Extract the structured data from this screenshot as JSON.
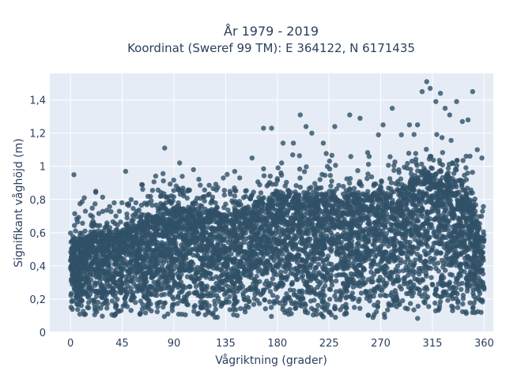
{
  "chart_data": {
    "type": "scatter",
    "title": "År 1979 - 2019",
    "subtitle": "Koordinat (Sweref 99 TM): E 364122, N 6171435",
    "xlabel": "Vågriktning (grader)",
    "ylabel": "Signifikant våghöjd (m)",
    "xlim": [
      -18,
      368
    ],
    "ylim": [
      0,
      1.56
    ],
    "x_ticks": [
      0,
      45,
      90,
      135,
      180,
      225,
      270,
      315,
      360
    ],
    "x_tick_labels": [
      "0",
      "45",
      "90",
      "135",
      "180",
      "225",
      "270",
      "315",
      "360"
    ],
    "y_ticks": [
      0,
      0.2,
      0.4,
      0.6,
      0.8,
      1.0,
      1.2,
      1.4
    ],
    "y_tick_labels": [
      "0",
      "0,2",
      "0,4",
      "0,6",
      "0,8",
      "1",
      "1,2",
      "1,4"
    ],
    "grid": true,
    "marker_color": "#2f5066",
    "plot_background": "#e5ecf6",
    "envelope": {
      "x": [
        0,
        15,
        30,
        45,
        60,
        75,
        90,
        105,
        120,
        135,
        150,
        165,
        180,
        195,
        210,
        225,
        240,
        255,
        270,
        285,
        300,
        315,
        330,
        345,
        360
      ],
      "low": [
        0.1,
        0.09,
        0.09,
        0.09,
        0.08,
        0.08,
        0.08,
        0.08,
        0.08,
        0.08,
        0.08,
        0.08,
        0.08,
        0.08,
        0.08,
        0.08,
        0.08,
        0.08,
        0.08,
        0.08,
        0.08,
        0.08,
        0.09,
        0.09,
        0.1
      ],
      "dense_top": [
        0.55,
        0.58,
        0.6,
        0.62,
        0.65,
        0.7,
        0.75,
        0.74,
        0.73,
        0.72,
        0.75,
        0.8,
        0.82,
        0.82,
        0.82,
        0.82,
        0.82,
        0.82,
        0.82,
        0.85,
        0.92,
        0.98,
        0.95,
        0.85,
        0.6
      ]
    },
    "outliers": [
      {
        "x": 3,
        "y": 0.95
      },
      {
        "x": 12,
        "y": 0.81
      },
      {
        "x": 22,
        "y": 0.85
      },
      {
        "x": 38,
        "y": 0.78
      },
      {
        "x": 48,
        "y": 0.97
      },
      {
        "x": 62,
        "y": 0.89
      },
      {
        "x": 82,
        "y": 1.11
      },
      {
        "x": 95,
        "y": 1.02
      },
      {
        "x": 107,
        "y": 0.98
      },
      {
        "x": 133,
        "y": 0.93
      },
      {
        "x": 158,
        "y": 1.05
      },
      {
        "x": 168,
        "y": 1.23
      },
      {
        "x": 175,
        "y": 1.23
      },
      {
        "x": 185,
        "y": 1.14
      },
      {
        "x": 194,
        "y": 1.14
      },
      {
        "x": 200,
        "y": 1.31
      },
      {
        "x": 205,
        "y": 1.24
      },
      {
        "x": 210,
        "y": 1.2
      },
      {
        "x": 220,
        "y": 1.14
      },
      {
        "x": 230,
        "y": 1.24
      },
      {
        "x": 243,
        "y": 1.31
      },
      {
        "x": 252,
        "y": 1.29
      },
      {
        "x": 268,
        "y": 1.19
      },
      {
        "x": 272,
        "y": 1.25
      },
      {
        "x": 280,
        "y": 1.35
      },
      {
        "x": 288,
        "y": 1.19
      },
      {
        "x": 295,
        "y": 1.25
      },
      {
        "x": 302,
        "y": 1.25
      },
      {
        "x": 306,
        "y": 1.45
      },
      {
        "x": 310,
        "y": 1.51
      },
      {
        "x": 313,
        "y": 1.47
      },
      {
        "x": 318,
        "y": 1.39
      },
      {
        "x": 322,
        "y": 1.44
      },
      {
        "x": 326,
        "y": 1.35
      },
      {
        "x": 330,
        "y": 1.31
      },
      {
        "x": 336,
        "y": 1.39
      },
      {
        "x": 341,
        "y": 1.27
      },
      {
        "x": 346,
        "y": 1.28
      },
      {
        "x": 350,
        "y": 1.45
      },
      {
        "x": 354,
        "y": 1.1
      },
      {
        "x": 358,
        "y": 1.05
      }
    ]
  }
}
